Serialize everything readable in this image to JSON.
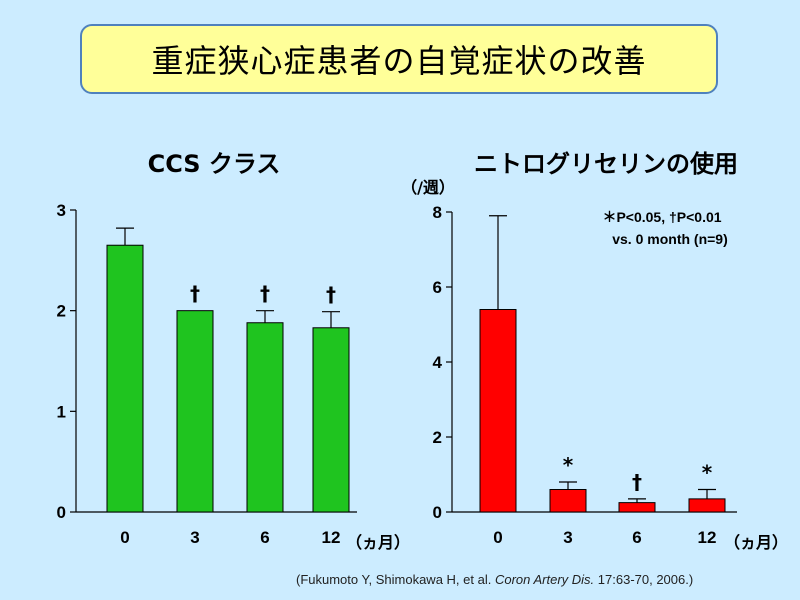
{
  "slide": {
    "title": "重症狭心症患者の自覚症状の改善",
    "citation_pre": "(Fukumoto Y, Shimokawa H, et al. ",
    "citation_journal": "Coron Artery Dis.",
    "citation_post": " 17:63-70, 2006.)"
  },
  "chart_data": [
    {
      "type": "bar",
      "title": "CCS クラス",
      "categories": [
        "0",
        "3",
        "6",
        "12"
      ],
      "values": [
        2.65,
        2.0,
        1.88,
        1.83
      ],
      "error": [
        0.17,
        0.0,
        0.12,
        0.16
      ],
      "markers": [
        "",
        "†",
        "†",
        "†"
      ],
      "xlabel": "（ヵ月）",
      "ylabel": "",
      "ylim": [
        0,
        3
      ],
      "yticks": [
        "0",
        "1",
        "2",
        "3"
      ],
      "color": "#1fc41f"
    },
    {
      "type": "bar",
      "title": "ニトログリセリンの使用",
      "categories": [
        "0",
        "3",
        "6",
        "12"
      ],
      "values": [
        5.4,
        0.6,
        0.25,
        0.35
      ],
      "error": [
        2.5,
        0.2,
        0.1,
        0.25
      ],
      "markers": [
        "",
        "*",
        "†",
        "*"
      ],
      "xlabel": "（ヵ月）",
      "ylabel": "（/週）",
      "ylim": [
        0,
        8
      ],
      "yticks": [
        "0",
        "2",
        "4",
        "6",
        "8"
      ],
      "legend_line1": "＊P<0.05, †P<0.01",
      "legend_line2": "vs. 0 month (n=9)",
      "color": "#ff0000"
    }
  ]
}
